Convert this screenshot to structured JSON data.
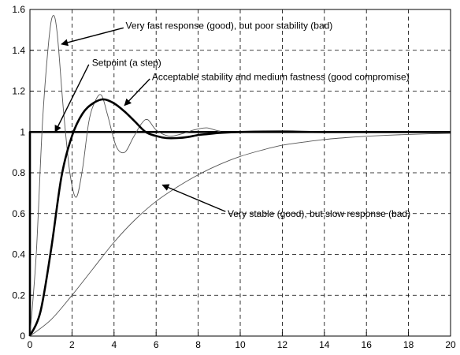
{
  "chart_data": {
    "type": "line",
    "xlim": [
      0,
      20
    ],
    "ylim": [
      0,
      1.6
    ],
    "grid": true,
    "grid_style": "dashed",
    "xticks": [
      0,
      2,
      4,
      6,
      8,
      10,
      12,
      14,
      16,
      18,
      20
    ],
    "yticks": [
      0,
      0.2,
      0.4,
      0.6,
      0.8,
      1,
      1.2,
      1.4,
      1.6
    ],
    "series": [
      {
        "id": "setpoint",
        "color": "#000000",
        "weight": "heavy",
        "points": [
          [
            0,
            0
          ],
          [
            0,
            1
          ],
          [
            20,
            1
          ]
        ]
      },
      {
        "id": "fast",
        "color": "#555555",
        "weight": "thin",
        "points": [
          [
            0,
            0
          ],
          [
            0.3,
            0.4
          ],
          [
            0.6,
            1.05
          ],
          [
            0.9,
            1.45
          ],
          [
            1.1,
            1.57
          ],
          [
            1.3,
            1.48
          ],
          [
            1.6,
            1.1
          ],
          [
            1.9,
            0.8
          ],
          [
            2.2,
            0.68
          ],
          [
            2.5,
            0.82
          ],
          [
            2.8,
            1.05
          ],
          [
            3.1,
            1.15
          ],
          [
            3.4,
            1.18
          ],
          [
            3.7,
            1.08
          ],
          [
            4.1,
            0.93
          ],
          [
            4.5,
            0.9
          ],
          [
            4.9,
            0.97
          ],
          [
            5.3,
            1.04
          ],
          [
            5.6,
            1.06
          ],
          [
            6.0,
            1.01
          ],
          [
            6.6,
            0.98
          ],
          [
            7.2,
            0.99
          ],
          [
            7.8,
            1.01
          ],
          [
            8.4,
            1.02
          ],
          [
            9.0,
            1.005
          ],
          [
            10,
            1.0
          ],
          [
            20,
            1.0
          ]
        ]
      },
      {
        "id": "medium",
        "color": "#000000",
        "weight": "heavy",
        "points": [
          [
            0,
            0
          ],
          [
            0.5,
            0.12
          ],
          [
            1.0,
            0.42
          ],
          [
            1.5,
            0.78
          ],
          [
            2.0,
            0.98
          ],
          [
            2.5,
            1.09
          ],
          [
            3.0,
            1.14
          ],
          [
            3.5,
            1.16
          ],
          [
            4.0,
            1.14
          ],
          [
            4.5,
            1.1
          ],
          [
            5.0,
            1.05
          ],
          [
            5.5,
            1.0
          ],
          [
            6.0,
            0.98
          ],
          [
            6.5,
            0.97
          ],
          [
            7.0,
            0.97
          ],
          [
            7.5,
            0.975
          ],
          [
            8.0,
            0.985
          ],
          [
            8.5,
            0.99
          ],
          [
            9.0,
            0.995
          ],
          [
            10,
            1.0
          ],
          [
            12,
            1.002
          ],
          [
            14,
            1.0
          ],
          [
            20,
            1.0
          ]
        ]
      },
      {
        "id": "slow",
        "color": "#555555",
        "weight": "thin",
        "points": [
          [
            0,
            0
          ],
          [
            1,
            0.08
          ],
          [
            2,
            0.2
          ],
          [
            3,
            0.33
          ],
          [
            4,
            0.46
          ],
          [
            5,
            0.57
          ],
          [
            6,
            0.66
          ],
          [
            7,
            0.73
          ],
          [
            8,
            0.79
          ],
          [
            9,
            0.84
          ],
          [
            10,
            0.88
          ],
          [
            11,
            0.91
          ],
          [
            12,
            0.935
          ],
          [
            13,
            0.95
          ],
          [
            14,
            0.963
          ],
          [
            15,
            0.972
          ],
          [
            16,
            0.979
          ],
          [
            17,
            0.984
          ],
          [
            18,
            0.988
          ],
          [
            19,
            0.991
          ],
          [
            20,
            0.993
          ]
        ]
      }
    ],
    "annotations": [
      {
        "text": "Very fast response (good), but poor stability (bad)",
        "text_at": [
          4.55,
          1.52
        ],
        "arrow_from": [
          4.45,
          1.51
        ],
        "arrow_to": [
          1.5,
          1.43
        ]
      },
      {
        "text": "Setpoint (a step)",
        "text_at": [
          2.95,
          1.34
        ],
        "arrow_from": [
          2.8,
          1.33
        ],
        "arrow_to": [
          1.2,
          1.0
        ]
      },
      {
        "text": "Acceptable stability and medium fastness (good compromise)",
        "text_at": [
          5.8,
          1.27
        ],
        "arrow_from": [
          5.7,
          1.26
        ],
        "arrow_to": [
          4.5,
          1.13
        ]
      },
      {
        "text": "Very stable (good), but slow response (bad)",
        "text_at": [
          9.4,
          0.6
        ],
        "arrow_from": [
          9.3,
          0.61
        ],
        "arrow_to": [
          6.3,
          0.74
        ]
      }
    ]
  }
}
